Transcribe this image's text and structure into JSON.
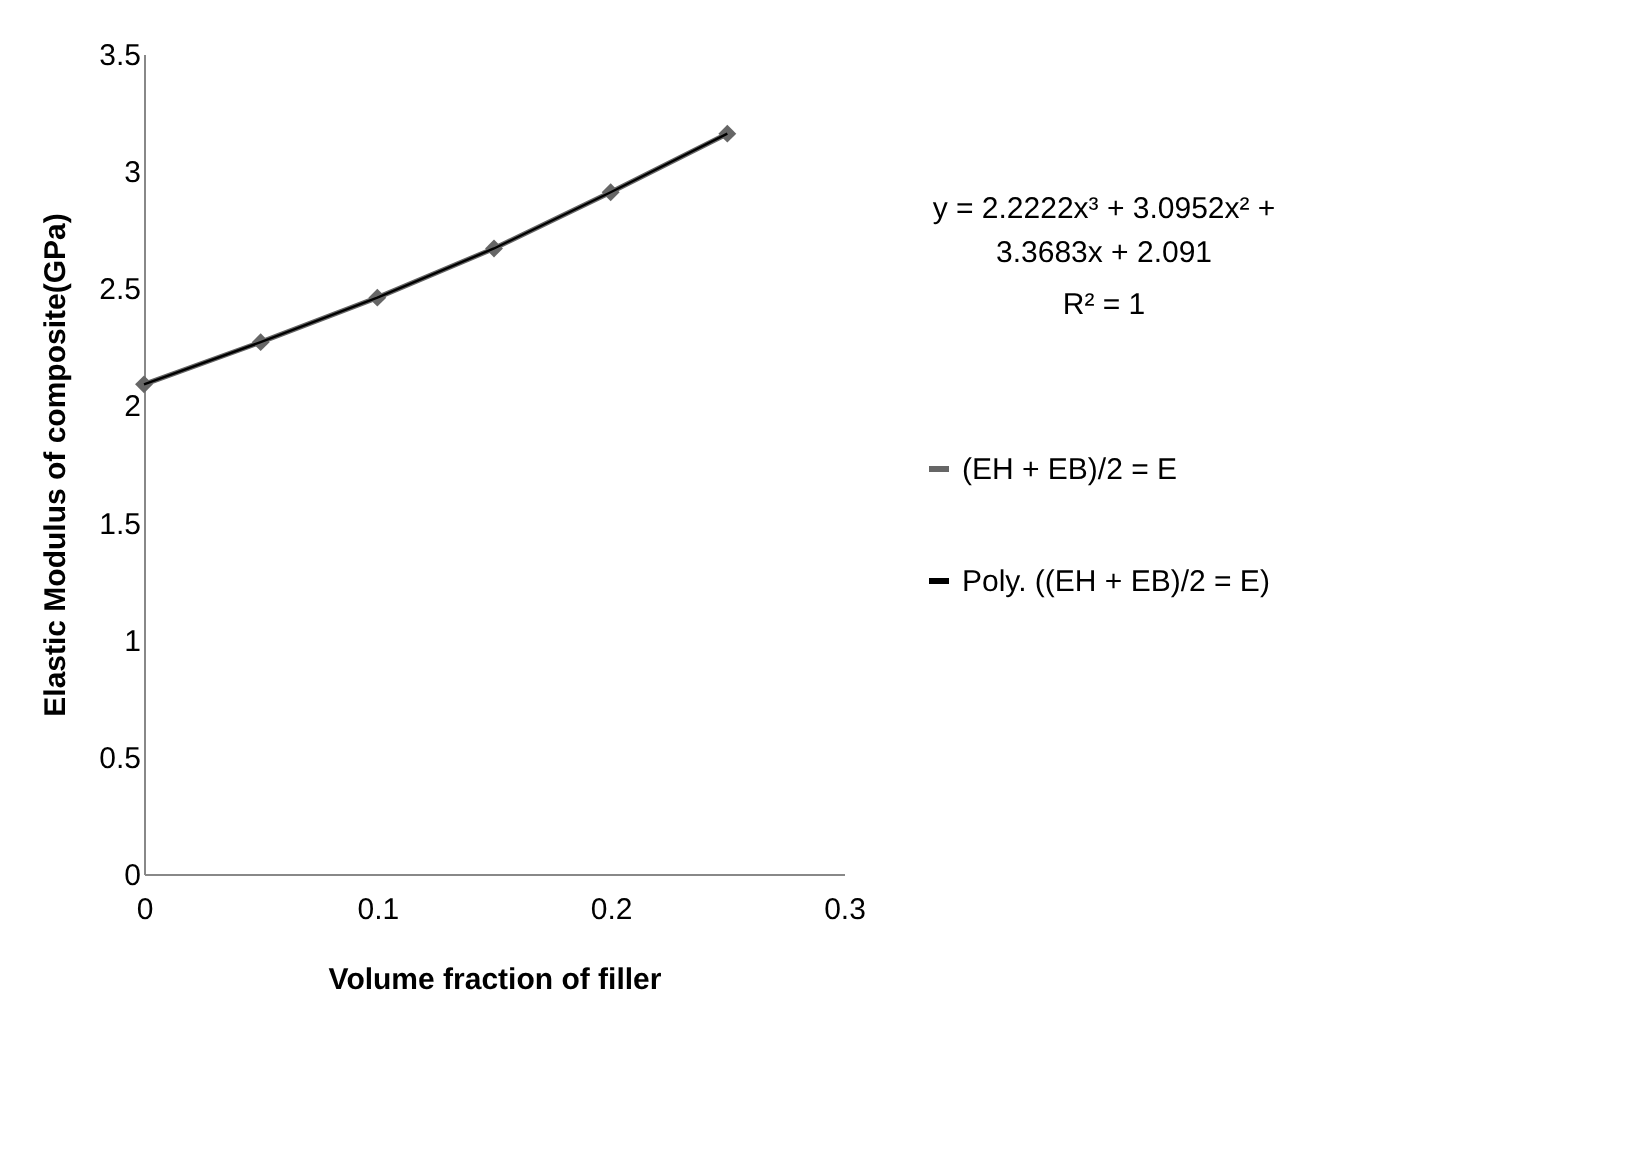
{
  "chart_data": {
    "type": "line",
    "xlabel": "Volume fraction of filler",
    "ylabel": "Elastic Modulus of composite(GPa)",
    "x": [
      0,
      0.05,
      0.1,
      0.15,
      0.2,
      0.25
    ],
    "series": [
      {
        "name": "(EH + EB)/2 = E",
        "color": "#666666",
        "values": [
          2.09,
          2.27,
          2.46,
          2.67,
          2.91,
          3.16
        ],
        "marker": "diamond"
      },
      {
        "name": "Poly. ((EH + EB)/2 = E)",
        "color": "#000000",
        "values": [
          2.09,
          2.27,
          2.46,
          2.67,
          2.91,
          3.16
        ],
        "marker": "none"
      }
    ],
    "xlim": [
      0,
      0.3
    ],
    "xticks": [
      0,
      0.1,
      0.2,
      0.3
    ],
    "ylim": [
      0,
      3.5
    ],
    "yticks": [
      0,
      0.5,
      1,
      1.5,
      2,
      2.5,
      3,
      3.5
    ],
    "annotations": [
      "y = 2.2222x³ + 3.0952x² + 3.3683x + 2.091",
      "R² = 1"
    ],
    "legend": "right",
    "grid": false
  }
}
